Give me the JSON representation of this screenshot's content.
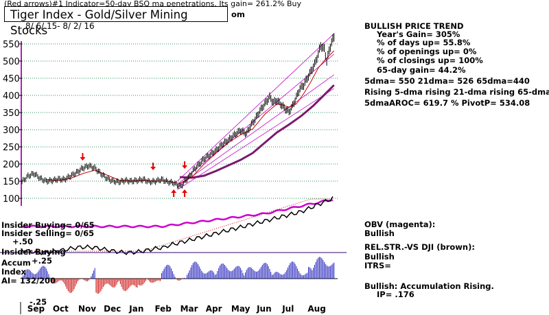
{
  "header": {
    "top_line": "(Red arrows)#1 Indicator=50-day BSQ ma penetrations. Its gain= 261.2% Buy",
    "url_fragment": "om",
    "chart_title": "Tiger Index - Gold/Silver Mining Stocks",
    "date_range": "8/ 6/ 15-  8/ 2/ 16"
  },
  "stats": {
    "trend_title": "BULLISH PRICE TREND",
    "lines": [
      "Year's Gain= 305%",
      "% of days up= 55.8%",
      "% of openings up= 0%",
      "% of closings up= 100%",
      "65-day gain= 44.2%"
    ],
    "ma_line": "5dma= 550  21dma= 526  65dma=440",
    "rising_line": "Rising 5-dma  rising 21-dma  rising 65-dma",
    "aroc_line": "5dmaAROC= 619.7 %  PivotP= 534.08"
  },
  "indicators": {
    "obv_label": "OBV (magenta):",
    "obv_status": "Bullish",
    "relstr_label": "REL.STR.-VS DJI (brown):",
    "relstr_status": "Bullish",
    "itrs": "ITRS=",
    "accum_status": "Bullish: Accumulation Rising.",
    "ip": "IP=  .176",
    "insider_buying": "Insider Buying= 0/65",
    "insider_selling": "Insider Selling= 0/65",
    "insider_buying_2": "Insider Buying",
    "accum_label": "Accum",
    "index_label": "Index",
    "ai": "AI= 132/200",
    "acc_ticks": [
      "+.50",
      "+.25",
      "-.25"
    ]
  },
  "colors": {
    "price": "#000000",
    "ma21": "#cc0000",
    "ma65": "#7a1a6e",
    "channel": "#cc33cc",
    "grid": "#2e8b57",
    "obv": "#cc00cc",
    "relstr": "#000000",
    "arrow": "#ee0000",
    "acc_pos": "#2222bb",
    "acc_neg": "#cc1111",
    "axis_band": "#aa22aa"
  },
  "chart_data": {
    "type": "line",
    "title": "Tiger Index - Gold/Silver Mining Stocks",
    "xlabel": "",
    "ylabel": "",
    "ylim": [
      100,
      550
    ],
    "y_ticks": [
      550,
      500,
      450,
      400,
      350,
      300,
      250,
      200,
      150,
      100
    ],
    "months": [
      "Sep",
      "Oct",
      "Nov",
      "Dec",
      "Jan",
      "Feb",
      "Mar",
      "Apr",
      "May",
      "Jun",
      "Jul",
      "Aug"
    ],
    "day_positions": [
      0,
      21,
      42,
      63,
      84,
      105,
      126,
      147,
      168,
      189,
      210,
      231,
      252
    ],
    "price": [
      [
        0,
        148
      ],
      [
        5,
        165
      ],
      [
        10,
        172
      ],
      [
        15,
        158
      ],
      [
        20,
        150
      ],
      [
        25,
        152
      ],
      [
        30,
        156
      ],
      [
        35,
        155
      ],
      [
        40,
        165
      ],
      [
        45,
        175
      ],
      [
        50,
        188
      ],
      [
        55,
        195
      ],
      [
        60,
        188
      ],
      [
        65,
        172
      ],
      [
        70,
        158
      ],
      [
        75,
        150
      ],
      [
        80,
        148
      ],
      [
        85,
        152
      ],
      [
        90,
        150
      ],
      [
        95,
        152
      ],
      [
        100,
        155
      ],
      [
        105,
        148
      ],
      [
        110,
        150
      ],
      [
        115,
        155
      ],
      [
        120,
        148
      ],
      [
        125,
        145
      ],
      [
        128,
        138
      ],
      [
        131,
        135
      ],
      [
        134,
        148
      ],
      [
        138,
        165
      ],
      [
        142,
        185
      ],
      [
        146,
        200
      ],
      [
        150,
        215
      ],
      [
        155,
        228
      ],
      [
        160,
        240
      ],
      [
        165,
        258
      ],
      [
        170,
        270
      ],
      [
        175,
        285
      ],
      [
        180,
        298
      ],
      [
        185,
        288
      ],
      [
        188,
        310
      ],
      [
        192,
        330
      ],
      [
        196,
        355
      ],
      [
        200,
        375
      ],
      [
        204,
        395
      ],
      [
        207,
        380
      ],
      [
        210,
        385
      ],
      [
        213,
        375
      ],
      [
        217,
        360
      ],
      [
        220,
        352
      ],
      [
        223,
        370
      ],
      [
        226,
        395
      ],
      [
        229,
        420
      ],
      [
        232,
        430
      ],
      [
        235,
        450
      ],
      [
        238,
        470
      ],
      [
        241,
        490
      ],
      [
        244,
        520
      ],
      [
        246,
        545
      ],
      [
        249,
        535
      ],
      [
        251,
        500
      ],
      [
        253,
        530
      ],
      [
        255,
        555
      ],
      [
        257,
        570
      ]
    ],
    "ma21": [
      [
        20,
        155
      ],
      [
        30,
        152
      ],
      [
        40,
        158
      ],
      [
        50,
        172
      ],
      [
        60,
        182
      ],
      [
        70,
        168
      ],
      [
        80,
        153
      ],
      [
        90,
        150
      ],
      [
        100,
        152
      ],
      [
        110,
        150
      ],
      [
        120,
        150
      ],
      [
        130,
        143
      ],
      [
        140,
        162
      ],
      [
        150,
        200
      ],
      [
        160,
        232
      ],
      [
        170,
        262
      ],
      [
        180,
        285
      ],
      [
        190,
        302
      ],
      [
        200,
        345
      ],
      [
        210,
        375
      ],
      [
        215,
        372
      ],
      [
        220,
        365
      ],
      [
        226,
        375
      ],
      [
        232,
        405
      ],
      [
        238,
        440
      ],
      [
        244,
        480
      ],
      [
        250,
        505
      ],
      [
        257,
        530
      ]
    ],
    "ma65": [
      [
        130,
        162
      ],
      [
        140,
        160
      ],
      [
        150,
        166
      ],
      [
        160,
        180
      ],
      [
        170,
        196
      ],
      [
        180,
        212
      ],
      [
        190,
        232
      ],
      [
        200,
        262
      ],
      [
        210,
        292
      ],
      [
        220,
        315
      ],
      [
        230,
        340
      ],
      [
        240,
        370
      ],
      [
        250,
        405
      ],
      [
        257,
        430
      ]
    ],
    "channels": [
      [
        [
          128,
          140
        ],
        [
          257,
          520
        ]
      ],
      [
        [
          128,
          150
        ],
        [
          257,
          580
        ]
      ],
      [
        [
          128,
          133
        ],
        [
          257,
          460
        ]
      ],
      [
        [
          128,
          125
        ],
        [
          257,
          420
        ]
      ]
    ],
    "buy_arrows_day": [
      125,
      134
    ],
    "sell_arrows_day": [
      50,
      108,
      134
    ]
  }
}
